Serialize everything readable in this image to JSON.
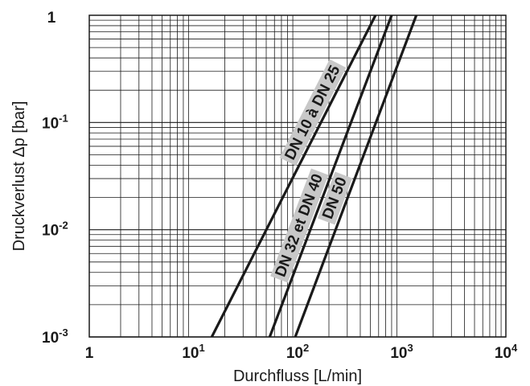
{
  "chart_data": {
    "type": "line",
    "xlabel": "Durchfluss [L/min]",
    "ylabel": "Druckverlust Δp [bar]",
    "x_scale": "log",
    "y_scale": "log",
    "xlim": [
      1,
      10000
    ],
    "ylim": [
      0.001,
      1
    ],
    "grid": true,
    "x_ticks": [
      {
        "value": 1,
        "base": "1",
        "exp": ""
      },
      {
        "value": 10,
        "base": "10",
        "exp": "1"
      },
      {
        "value": 100,
        "base": "10",
        "exp": "2"
      },
      {
        "value": 1000,
        "base": "10",
        "exp": "3"
      },
      {
        "value": 10000,
        "base": "10",
        "exp": "4"
      }
    ],
    "y_ticks": [
      {
        "value": 1,
        "base": "1",
        "exp": ""
      },
      {
        "value": 0.1,
        "base": "10",
        "exp": "-1"
      },
      {
        "value": 0.01,
        "base": "10",
        "exp": "-2"
      },
      {
        "value": 0.001,
        "base": "10",
        "exp": "-3"
      }
    ],
    "series": [
      {
        "name": "DN 10 à DN 25",
        "x": [
          15,
          560
        ],
        "y": [
          0.001,
          1
        ]
      },
      {
        "name": "DN 32 et DN 40",
        "x": [
          54,
          800
        ],
        "y": [
          0.001,
          1
        ]
      },
      {
        "name": "DN 50",
        "x": [
          95,
          1380
        ],
        "y": [
          0.001,
          1
        ]
      }
    ]
  }
}
